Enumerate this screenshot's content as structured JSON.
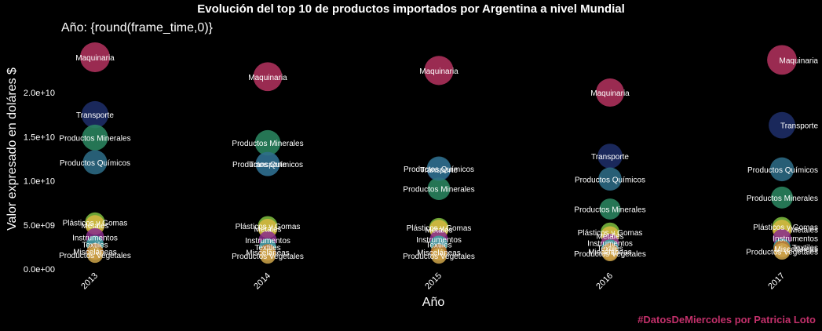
{
  "title": "Evolución del top 10 de productos importados por Argentina a nivel Mundial",
  "frame_label": "Año: {round(frame_time,0)}",
  "caption": "#DatosDeMiercoles por Patricia Loto",
  "colors": {
    "caption": "#c2306a",
    "background": "#000000"
  },
  "chart_data": {
    "type": "scatter",
    "xlabel": "Año",
    "ylabel": "Valor expresado en doláres $",
    "x_ticks": [
      "2013",
      "2014",
      "2015",
      "2016",
      "2017"
    ],
    "y_ticks": [
      "0.0e+00",
      "5.0e+09",
      "1.0e+10",
      "1.5e+10",
      "2.0e+10"
    ],
    "y_tick_values": [
      0,
      5000000000,
      10000000000,
      15000000000,
      20000000000
    ],
    "ylim": [
      0,
      24000000000
    ],
    "grid": false,
    "legend": "none",
    "series": [
      {
        "name": "Maquinaria",
        "color": "#b5335f",
        "values": [
          24000000000,
          21800000000,
          22500000000,
          20000000000,
          23700000000
        ]
      },
      {
        "name": "Transporte",
        "color": "#1f2f6b",
        "values": [
          17500000000,
          11900000000,
          11300000000,
          12800000000,
          16300000000
        ]
      },
      {
        "name": "Productos Minerales",
        "color": "#2b8a63",
        "values": [
          14900000000,
          14300000000,
          9100000000,
          6800000000,
          8100000000
        ]
      },
      {
        "name": "Productos Químicos",
        "color": "#2e6f8a",
        "values": [
          12100000000,
          11900000000,
          11400000000,
          10200000000,
          11300000000
        ]
      },
      {
        "name": "Plásticos y Gomas",
        "color": "#7fbf3f",
        "values": [
          5300000000,
          4900000000,
          4700000000,
          4200000000,
          4800000000
        ]
      },
      {
        "name": "Metales",
        "color": "#d9b840",
        "values": [
          5000000000,
          4600000000,
          4500000000,
          3800000000,
          4500000000
        ]
      },
      {
        "name": "Instrumentos",
        "color": "#8a2d8c",
        "values": [
          3600000000,
          3300000000,
          3400000000,
          3000000000,
          3500000000
        ]
      },
      {
        "name": "Textiles",
        "color": "#3aa3a0",
        "values": [
          2800000000,
          2500000000,
          2800000000,
          2400000000,
          2500000000
        ]
      },
      {
        "name": "Misceláneas",
        "color": "#c77a2e",
        "values": [
          2000000000,
          1900000000,
          1900000000,
          2000000000,
          2300000000
        ]
      },
      {
        "name": "Productos Vegetales",
        "color": "#cfa64a",
        "values": [
          1600000000,
          1500000000,
          1500000000,
          1800000000,
          2000000000
        ]
      }
    ]
  }
}
